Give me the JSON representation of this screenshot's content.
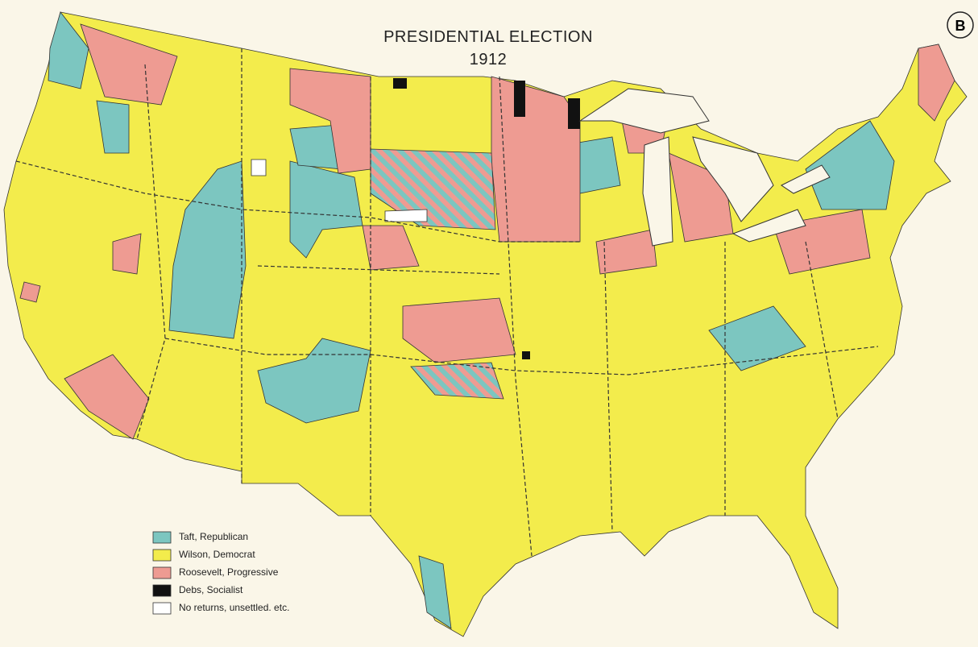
{
  "map": {
    "title": "PRESIDENTIAL ELECTION",
    "subtitle": "1912",
    "badge": "B",
    "legend": [
      {
        "label": "Taft, Republican",
        "color": "#7cc6c0"
      },
      {
        "label": "Wilson, Democrat",
        "color": "#f3ec4c"
      },
      {
        "label": "Roosevelt, Progressive",
        "color": "#ee9b92"
      },
      {
        "label": "Debs, Socialist",
        "color": "#111111"
      },
      {
        "label": "No returns, unsettled. etc.",
        "color": "#ffffff"
      }
    ]
  }
}
